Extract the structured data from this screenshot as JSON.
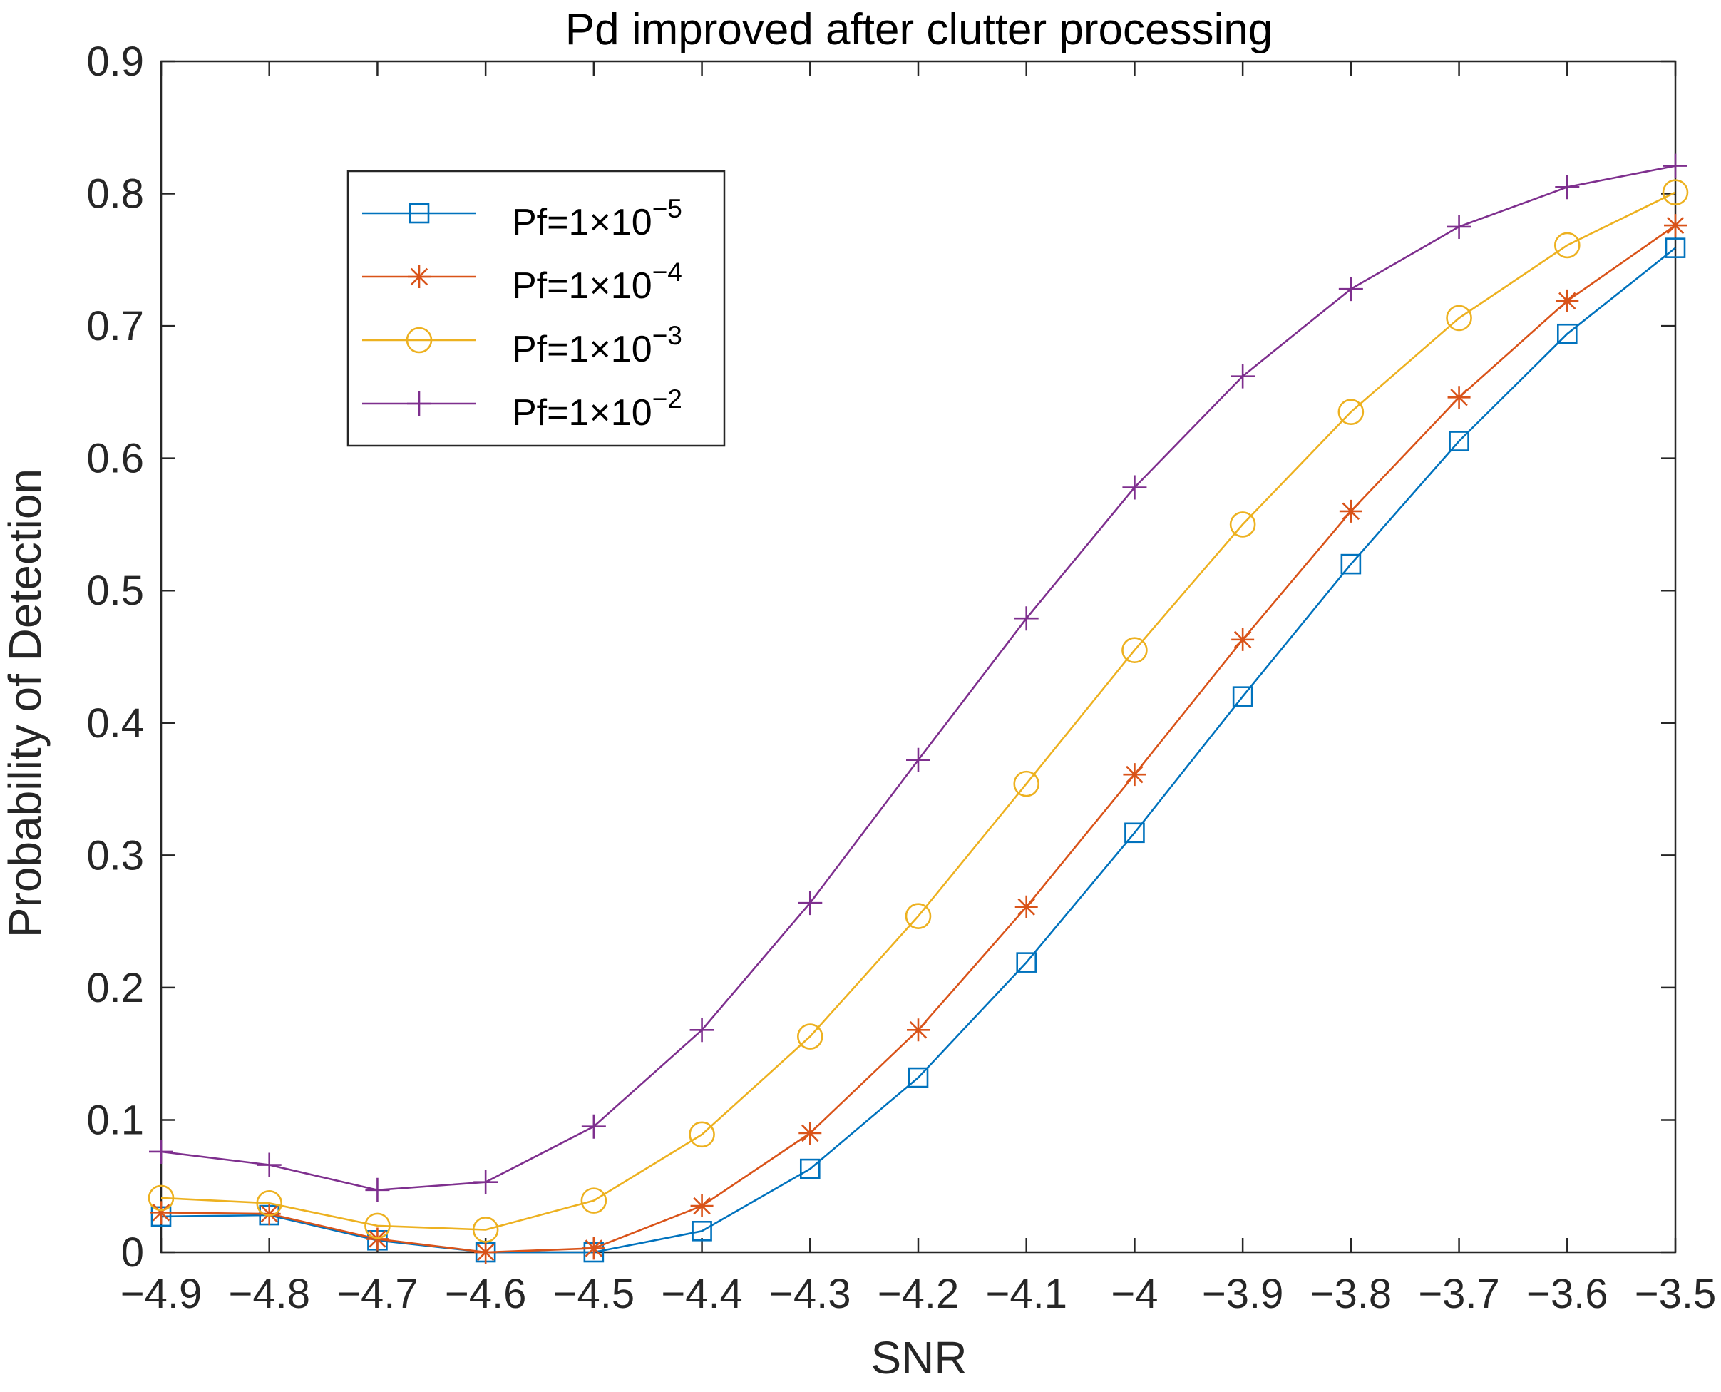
{
  "chart_data": {
    "type": "line",
    "title": "Pd improved after clutter processing",
    "xlabel": "SNR",
    "ylabel": "Probability of Detection",
    "xlim": [
      -4.9,
      -3.5
    ],
    "ylim": [
      0,
      0.9
    ],
    "x": [
      -4.9,
      -4.8,
      -4.7,
      -4.6,
      -4.5,
      -4.4,
      -4.3,
      -4.2,
      -4.1,
      -4.0,
      -3.9,
      -3.8,
      -3.7,
      -3.6,
      -3.5
    ],
    "xtick_labels": [
      "−4.9",
      "−4.8",
      "−4.7",
      "−4.6",
      "−4.5",
      "−4.4",
      "−4.3",
      "−4.2",
      "−4.1",
      "−4",
      "−3.9",
      "−3.8",
      "−3.7",
      "−3.6",
      "−3.5"
    ],
    "yticks": [
      0,
      0.1,
      0.2,
      0.3,
      0.4,
      0.5,
      0.6,
      0.7,
      0.8,
      0.9
    ],
    "ytick_labels": [
      "0",
      "0.1",
      "0.2",
      "0.3",
      "0.4",
      "0.5",
      "0.6",
      "0.7",
      "0.8",
      "0.9"
    ],
    "grid": false,
    "legend_position": "upper-left (inside)",
    "series": [
      {
        "name": "Pf=1×10^−5",
        "legend_base": "Pf=1×10",
        "legend_exp": "−5",
        "marker": "square",
        "color": "#0072BD",
        "values": [
          0.027,
          0.028,
          0.009,
          0.0,
          0.0,
          0.016,
          0.063,
          0.132,
          0.219,
          0.317,
          0.42,
          0.52,
          0.613,
          0.694,
          0.759
        ]
      },
      {
        "name": "Pf=1×10^−4",
        "legend_base": "Pf=1×10",
        "legend_exp": "−4",
        "marker": "asterisk",
        "color": "#D95319",
        "values": [
          0.03,
          0.029,
          0.01,
          0.0,
          0.003,
          0.035,
          0.09,
          0.168,
          0.261,
          0.361,
          0.463,
          0.56,
          0.646,
          0.719,
          0.776
        ]
      },
      {
        "name": "Pf=1×10^−3",
        "legend_base": "Pf=1×10",
        "legend_exp": "−3",
        "marker": "circle",
        "color": "#EDB120",
        "values": [
          0.041,
          0.037,
          0.02,
          0.017,
          0.039,
          0.089,
          0.163,
          0.254,
          0.354,
          0.455,
          0.55,
          0.635,
          0.706,
          0.761,
          0.801
        ]
      },
      {
        "name": "Pf=1×10^−2",
        "legend_base": "Pf=1×10",
        "legend_exp": "−2",
        "marker": "plus",
        "color": "#7E2F8E",
        "values": [
          0.076,
          0.066,
          0.047,
          0.053,
          0.095,
          0.168,
          0.264,
          0.372,
          0.479,
          0.578,
          0.662,
          0.728,
          0.775,
          0.805,
          0.821
        ]
      }
    ]
  }
}
